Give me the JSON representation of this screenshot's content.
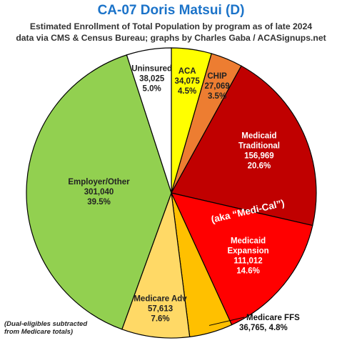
{
  "title": "CA-07 Doris Matsui (D)",
  "subtitle_line1": "Estimated Enrollment of Total Population by program as of late 2024",
  "subtitle_line2": "data via CMS & Census Bureau; graphs by Charles Gaba / ACASignups.net",
  "footnote_line1": "(Dual-eligibles subtracted",
  "footnote_line2": "from Medicare totals)",
  "medi_cal_note": "(aka “Medi-Cal”)",
  "chart_data": {
    "type": "pie",
    "start_angle": "12 o'clock, clockwise",
    "slices": [
      {
        "label": "ACA",
        "value": 34075,
        "value_text": "34,075",
        "percent": "4.5%",
        "color": "#ffff00"
      },
      {
        "label": "CHIP",
        "value": 27069,
        "value_text": "27,069",
        "percent": "3.5%",
        "color": "#ed7d31"
      },
      {
        "label": "Medicaid Traditional",
        "label_lines": [
          "Medicaid",
          "Traditional"
        ],
        "value": 156969,
        "value_text": "156,969",
        "percent": "20.6%",
        "color": "#c00000"
      },
      {
        "label": "Medicaid Expansion",
        "label_lines": [
          "Medicaid",
          "Expansion"
        ],
        "value": 111012,
        "value_text": "111,012",
        "percent": "14.6%",
        "color": "#ff0000"
      },
      {
        "label": "Medicare FFS",
        "value": 36765,
        "value_text": "36,765",
        "percent": "4.8%",
        "color": "#ffc000"
      },
      {
        "label": "Medicare Adv",
        "value": 57613,
        "value_text": "57,613",
        "percent": "7.6%",
        "color": "#ffd966"
      },
      {
        "label": "Employer/Other",
        "value": 301040,
        "value_text": "301,040",
        "percent": "39.5%",
        "color": "#92d050"
      },
      {
        "label": "Uninsured",
        "value": 38025,
        "value_text": "38,025",
        "percent": "5.0%",
        "color": "#ffffff"
      }
    ]
  }
}
